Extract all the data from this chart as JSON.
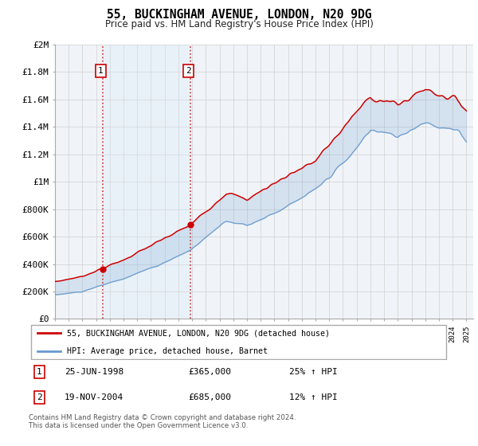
{
  "title": "55, BUCKINGHAM AVENUE, LONDON, N20 9DG",
  "subtitle": "Price paid vs. HM Land Registry's House Price Index (HPI)",
  "legend_line1": "55, BUCKINGHAM AVENUE, LONDON, N20 9DG (detached house)",
  "legend_line2": "HPI: Average price, detached house, Barnet",
  "annotation1_label": "1",
  "annotation1_date": "25-JUN-1998",
  "annotation1_price": "£365,000",
  "annotation1_hpi": "25% ↑ HPI",
  "annotation2_label": "2",
  "annotation2_date": "19-NOV-2004",
  "annotation2_price": "£685,000",
  "annotation2_hpi": "12% ↑ HPI",
  "footer": "Contains HM Land Registry data © Crown copyright and database right 2024.\nThis data is licensed under the Open Government Licence v3.0.",
  "red_color": "#cc0000",
  "blue_color": "#6699cc",
  "fill_color": "#d8eaf8",
  "bg_color": "#f0f4f8",
  "grid_color": "#cccccc",
  "sale1_year": 1998.48,
  "sale1_y": 365000,
  "sale2_year": 2004.88,
  "sale2_y": 685000,
  "ylim_max": 2000000,
  "yticks": [
    0,
    200000,
    400000,
    600000,
    800000,
    1000000,
    1200000,
    1400000,
    1600000,
    1800000,
    2000000
  ],
  "ytick_labels": [
    "£0",
    "£200K",
    "£400K",
    "£600K",
    "£800K",
    "£1M",
    "£1.2M",
    "£1.4M",
    "£1.6M",
    "£1.8M",
    "£2M"
  ],
  "xmin": 1995.0,
  "xmax": 2025.5
}
